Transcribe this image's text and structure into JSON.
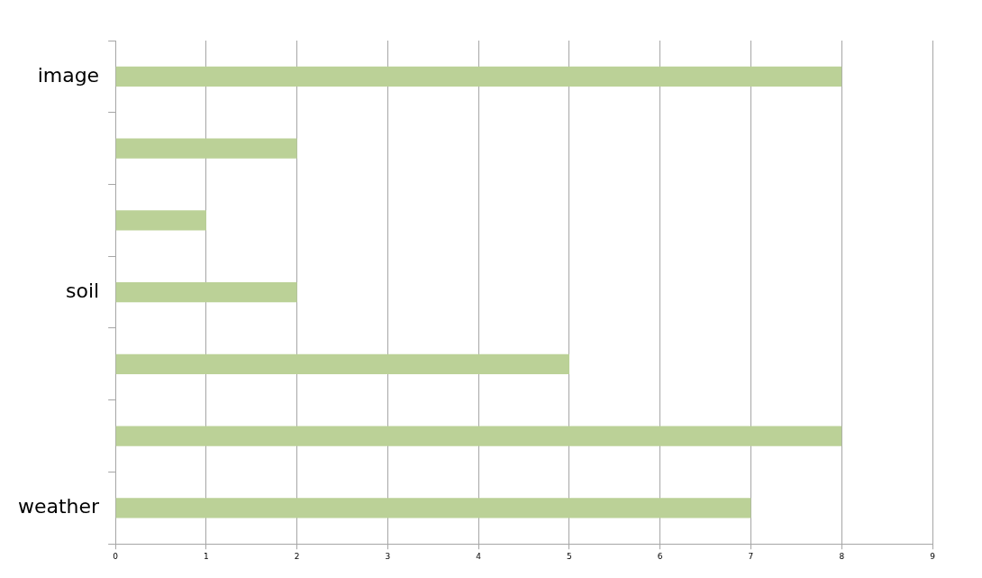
{
  "chart_data": {
    "type": "bar",
    "orientation": "horizontal",
    "categories": [
      "image",
      null,
      null,
      "soil",
      null,
      null,
      "weather"
    ],
    "values": [
      8,
      2,
      1,
      2,
      5,
      8,
      7
    ],
    "color": "#bbd197",
    "xlim": [
      0,
      9
    ],
    "xticks": [
      0,
      1,
      2,
      3,
      4,
      5,
      6,
      7,
      8,
      9
    ],
    "grid": "x",
    "legend": false
  }
}
